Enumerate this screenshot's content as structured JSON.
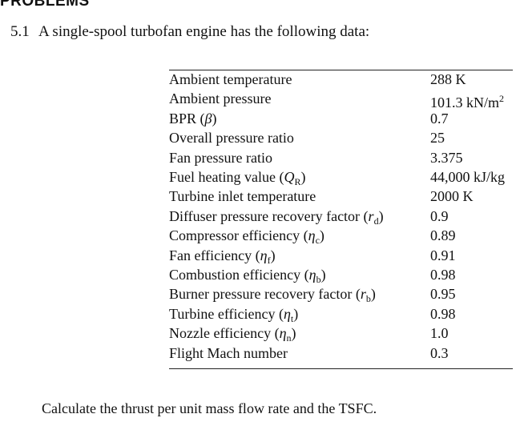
{
  "header": {
    "title": "PROBLEMS"
  },
  "problem": {
    "number": "5.1",
    "statement": "A single-spool turbofan engine has the following data:",
    "rows": [
      {
        "label": [
          {
            "text": "Ambient temperature"
          }
        ],
        "value": [
          {
            "text": "288 K"
          }
        ]
      },
      {
        "label": [
          {
            "text": "Ambient pressure"
          }
        ],
        "value": [
          {
            "text": "101.3 kN/m"
          },
          {
            "text": "2",
            "style": "sup"
          }
        ]
      },
      {
        "label": [
          {
            "text": "BPR ("
          },
          {
            "text": "β",
            "style": "italic"
          },
          {
            "text": ")"
          }
        ],
        "value": [
          {
            "text": "0.7"
          }
        ]
      },
      {
        "label": [
          {
            "text": "Overall pressure ratio"
          }
        ],
        "value": [
          {
            "text": "25"
          }
        ]
      },
      {
        "label": [
          {
            "text": "Fan pressure ratio"
          }
        ],
        "value": [
          {
            "text": "3.375"
          }
        ]
      },
      {
        "label": [
          {
            "text": "Fuel heating value ("
          },
          {
            "text": "Q",
            "style": "italic"
          },
          {
            "text": "R",
            "style": "sub"
          },
          {
            "text": ")"
          }
        ],
        "value": [
          {
            "text": "44,000 kJ/kg"
          }
        ]
      },
      {
        "label": [
          {
            "text": "Turbine inlet temperature"
          }
        ],
        "value": [
          {
            "text": "2000 K"
          }
        ]
      },
      {
        "label": [
          {
            "text": "Diffuser pressure recovery factor ("
          },
          {
            "text": "r",
            "style": "italic"
          },
          {
            "text": "d",
            "style": "sub"
          },
          {
            "text": ")"
          }
        ],
        "value": [
          {
            "text": "0.9"
          }
        ]
      },
      {
        "label": [
          {
            "text": "Compressor efficiency ("
          },
          {
            "text": "η",
            "style": "italic"
          },
          {
            "text": "c",
            "style": "sub"
          },
          {
            "text": ")"
          }
        ],
        "value": [
          {
            "text": "0.89"
          }
        ]
      },
      {
        "label": [
          {
            "text": "Fan efficiency ("
          },
          {
            "text": "η",
            "style": "italic"
          },
          {
            "text": "f",
            "style": "sub"
          },
          {
            "text": ")"
          }
        ],
        "value": [
          {
            "text": "0.91"
          }
        ]
      },
      {
        "label": [
          {
            "text": "Combustion efficiency ("
          },
          {
            "text": "η",
            "style": "italic"
          },
          {
            "text": "b",
            "style": "sub"
          },
          {
            "text": ")"
          }
        ],
        "value": [
          {
            "text": "0.98"
          }
        ]
      },
      {
        "label": [
          {
            "text": "Burner pressure recovery factor ("
          },
          {
            "text": "r",
            "style": "italic"
          },
          {
            "text": "b",
            "style": "sub"
          },
          {
            "text": ")"
          }
        ],
        "value": [
          {
            "text": "0.95"
          }
        ]
      },
      {
        "label": [
          {
            "text": "Turbine efficiency ("
          },
          {
            "text": "η",
            "style": "italic"
          },
          {
            "text": "t",
            "style": "sub"
          },
          {
            "text": ")"
          }
        ],
        "value": [
          {
            "text": "0.98"
          }
        ]
      },
      {
        "label": [
          {
            "text": "Nozzle efficiency ("
          },
          {
            "text": "η",
            "style": "italic"
          },
          {
            "text": "n",
            "style": "sub"
          },
          {
            "text": ")"
          }
        ],
        "value": [
          {
            "text": "1.0"
          }
        ]
      },
      {
        "label": [
          {
            "text": "Flight Mach number"
          }
        ],
        "value": [
          {
            "text": "0.3"
          }
        ]
      }
    ],
    "question": "Calculate the thrust per unit mass flow rate and the TSFC."
  }
}
